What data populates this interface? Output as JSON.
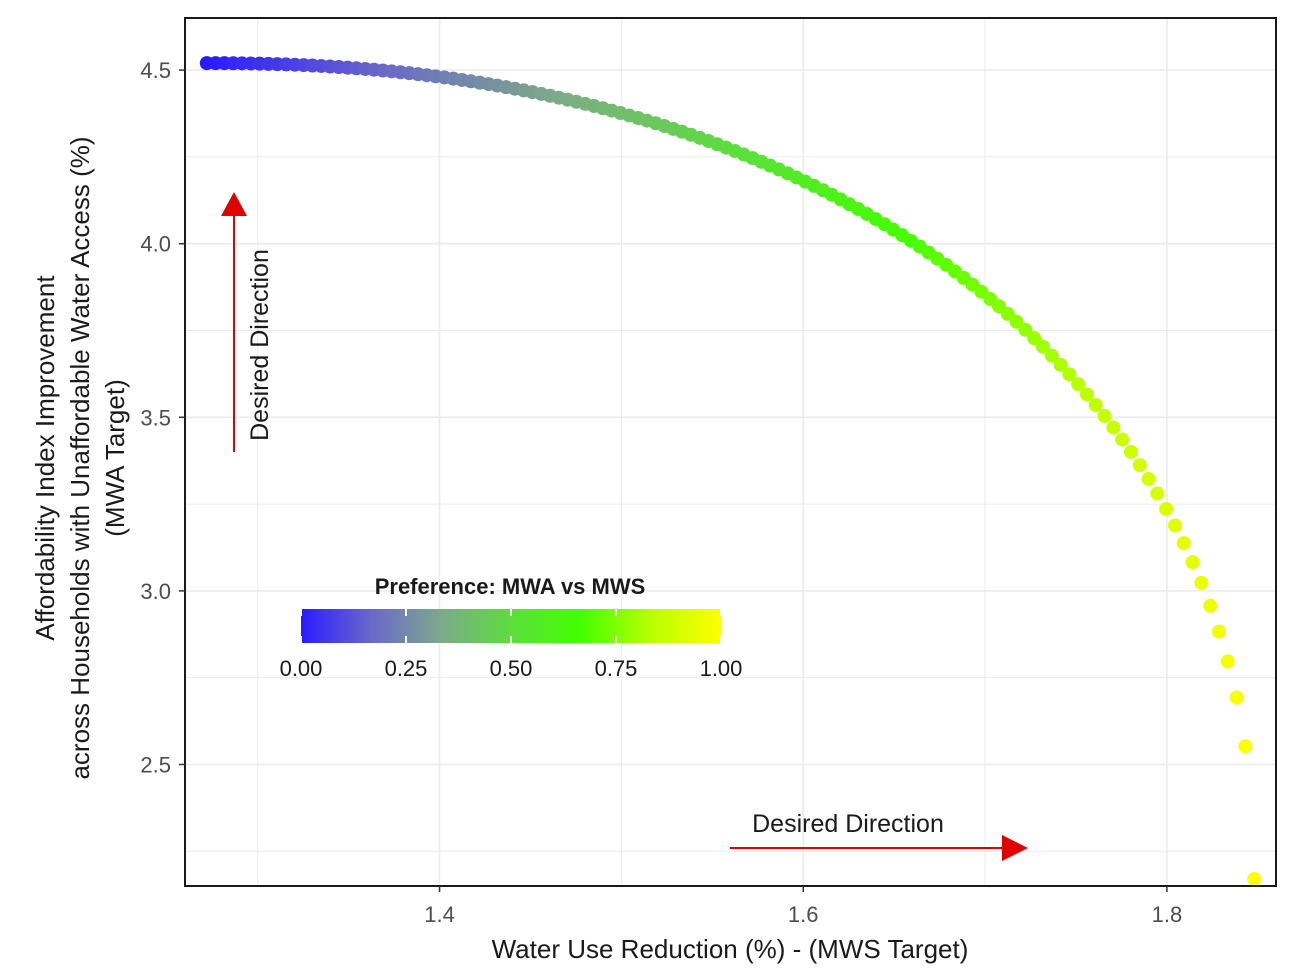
{
  "chart_data": {
    "type": "scatter",
    "title": "",
    "xlabel": "Water Use Reduction (%) - (MWS Target)",
    "ylabel_lines": [
      "Affordability Index Improvement",
      "across Households with Unaffordable Water Access (%)",
      "(MWA Target)"
    ],
    "xlim": [
      1.26,
      1.86
    ],
    "ylim": [
      2.15,
      4.65
    ],
    "x_ticks": [
      {
        "value": 1.4,
        "label": "1.4"
      },
      {
        "value": 1.6,
        "label": "1.6"
      },
      {
        "value": 1.8,
        "label": "1.8"
      }
    ],
    "y_ticks": [
      {
        "value": 2.5,
        "label": "2.5"
      },
      {
        "value": 3.0,
        "label": "3.0"
      },
      {
        "value": 3.5,
        "label": "3.5"
      },
      {
        "value": 4.0,
        "label": "4.0"
      },
      {
        "value": 4.5,
        "label": "4.5"
      }
    ],
    "grid": true,
    "color_scale": {
      "title": "Preference: MWA vs MWS",
      "stops": [
        "#2a1bff",
        "#6a68c8",
        "#7ea98a",
        "#5ddd3e",
        "#44ff00",
        "#b9ff00",
        "#ffff00"
      ],
      "ticks": [
        {
          "value": 0.0,
          "label": "0.00"
        },
        {
          "value": 0.25,
          "label": "0.25"
        },
        {
          "value": 0.5,
          "label": "0.50"
        },
        {
          "value": 0.75,
          "label": "0.75"
        },
        {
          "value": 1.0,
          "label": "1.00"
        }
      ],
      "placement": "inside-left"
    },
    "curve": {
      "n_points": 120,
      "x_start": 1.272,
      "x_end": 1.848,
      "y_top": 4.52,
      "y_bottom": 2.17,
      "shape_exponent": 2.2,
      "color_by": "preference 0 to 1"
    },
    "annotations": [
      {
        "text": "Desired Direction",
        "direction": "up",
        "color": "#e00000"
      },
      {
        "text": "Desired Direction",
        "direction": "right",
        "color": "#e00000"
      }
    ]
  }
}
